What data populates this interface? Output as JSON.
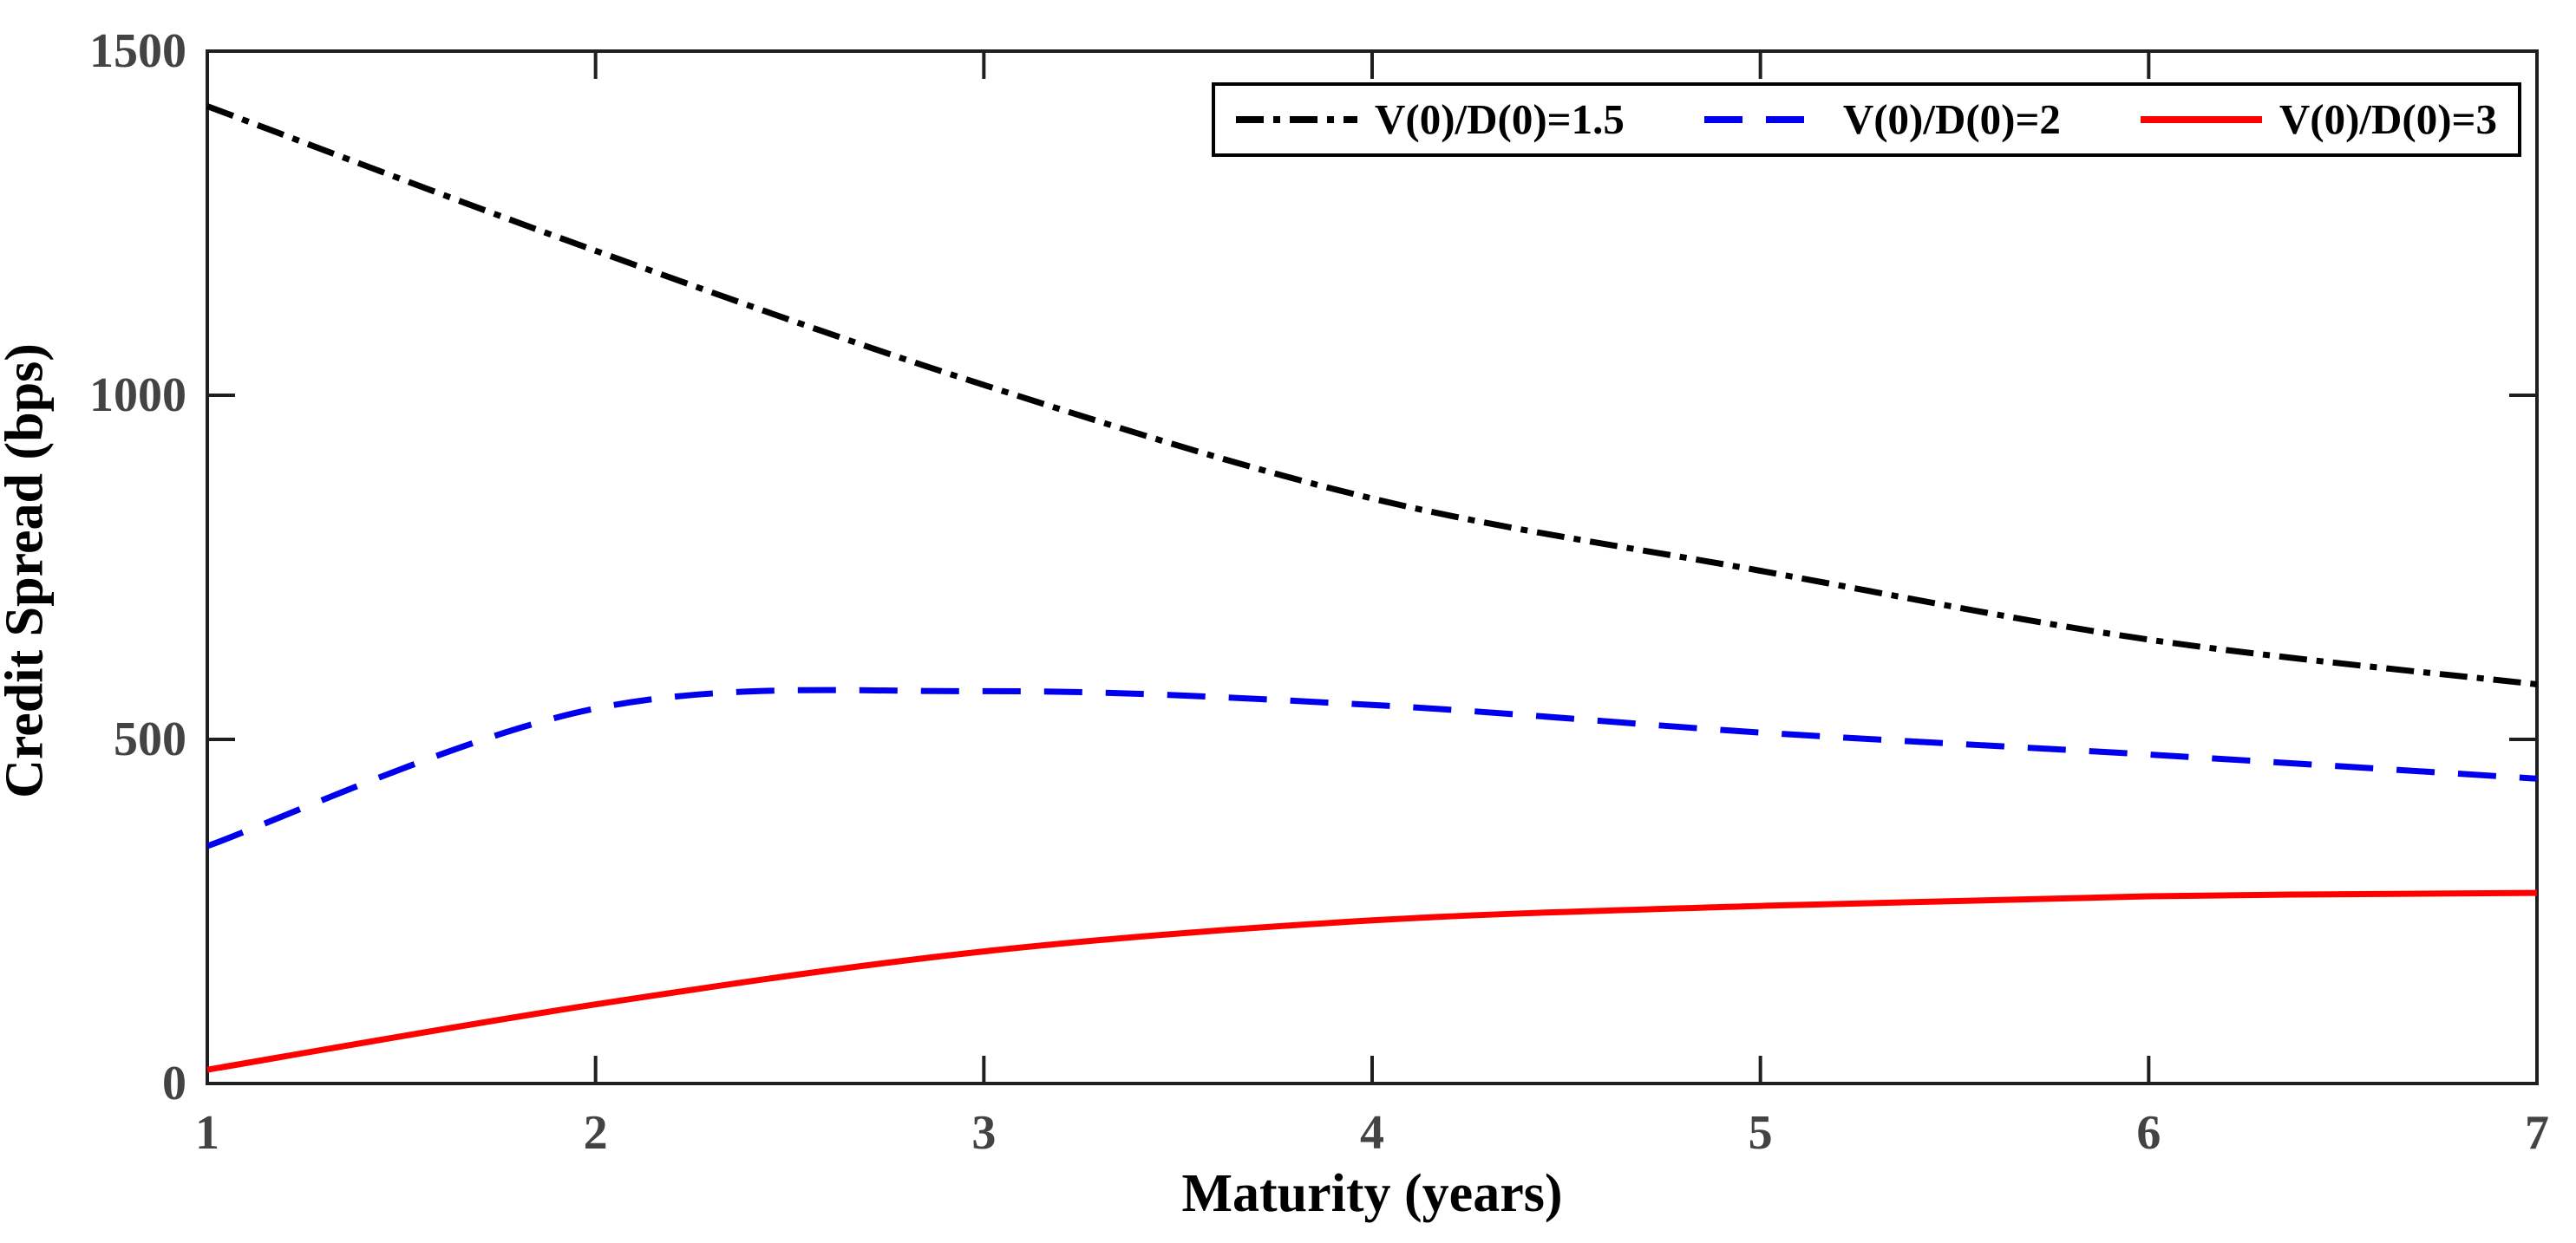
{
  "axes": {
    "xlabel": "Maturity (years)",
    "ylabel": "Credit Spread (bps)",
    "axis_color": "#1f1f1f",
    "tick_label_color": "#434343"
  },
  "chart_data": {
    "type": "line",
    "title": "",
    "xlabel": "Maturity (years)",
    "ylabel": "Credit Spread (bps)",
    "x": [
      1,
      2,
      3,
      4,
      5,
      6,
      7
    ],
    "xticks": [
      1,
      2,
      3,
      4,
      5,
      6,
      7
    ],
    "xtick_labels": [
      "1",
      "2",
      "3",
      "4",
      "5",
      "6",
      "7"
    ],
    "yticks": [
      0,
      500,
      1000,
      1500
    ],
    "ytick_labels": [
      "0",
      "500",
      "1000",
      "1500"
    ],
    "xlim": [
      1,
      7
    ],
    "ylim": [
      0,
      1500
    ],
    "grid": false,
    "legend_position": "top-right",
    "series": [
      {
        "name": "V(0)/D(0)=1.5",
        "color": "#000000",
        "style": "dash-dot",
        "values": [
          1420,
          1210,
          1015,
          850,
          745,
          645,
          580
        ]
      },
      {
        "name": "V(0)/D(0)=2",
        "color": "#0000ee",
        "style": "dashed",
        "values": [
          345,
          545,
          570,
          550,
          510,
          478,
          443
        ]
      },
      {
        "name": "V(0)/D(0)=3",
        "color": "#ff0000",
        "style": "solid",
        "values": [
          20,
          115,
          192,
          237,
          258,
          272,
          277
        ]
      }
    ]
  }
}
